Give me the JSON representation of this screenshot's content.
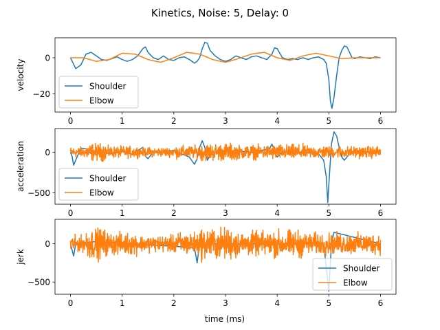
{
  "figure_title": "Kinetics, Noise: 5, Delay: 0",
  "x_label": "time (ms)",
  "chart_data": [
    {
      "type": "line",
      "ylabel": "velocity",
      "xlim": [
        -0.3,
        6.3
      ],
      "ylim": [
        -30,
        11
      ],
      "xticks": [
        0,
        1,
        2,
        3,
        4,
        5,
        6
      ],
      "yticks": [
        0,
        -20
      ],
      "legend": "lower-left",
      "series": [
        {
          "name": "Shoulder",
          "color": "#1f77b4",
          "x": [
            0,
            0.05,
            0.1,
            0.2,
            0.3,
            0.4,
            0.5,
            0.6,
            0.7,
            0.8,
            0.9,
            1.0,
            1.1,
            1.2,
            1.3,
            1.4,
            1.45,
            1.5,
            1.6,
            1.7,
            1.8,
            1.9,
            2.0,
            2.1,
            2.2,
            2.3,
            2.4,
            2.45,
            2.5,
            2.55,
            2.6,
            2.65,
            2.7,
            2.8,
            2.9,
            3.0,
            3.1,
            3.2,
            3.3,
            3.4,
            3.5,
            3.6,
            3.7,
            3.8,
            3.9,
            3.95,
            4.0,
            4.1,
            4.2,
            4.3,
            4.4,
            4.5,
            4.6,
            4.7,
            4.8,
            4.9,
            4.95,
            5.0,
            5.03,
            5.06,
            5.1,
            5.15,
            5.2,
            5.25,
            5.3,
            5.35,
            5.4,
            5.45,
            5.5,
            5.6,
            5.7,
            5.8,
            5.9,
            6.0
          ],
          "y": [
            0,
            -3,
            -6,
            -4,
            2,
            3,
            1,
            -1,
            -1.5,
            -0.5,
            0.5,
            -1,
            -2,
            -1,
            1,
            5,
            6,
            3,
            0,
            -1,
            1,
            -1,
            -1.5,
            0,
            0.5,
            -1,
            -3,
            -2,
            0,
            5,
            8.5,
            8,
            4,
            1,
            -1,
            -2,
            -1,
            1,
            0,
            -1,
            0.5,
            1,
            0,
            -1,
            2,
            5.5,
            5,
            0,
            -1,
            -0.5,
            -1,
            0,
            -1,
            0,
            0.5,
            -1,
            -3,
            -12,
            -24,
            -28,
            -22,
            -10,
            0,
            4,
            6.5,
            6,
            3,
            0,
            -0.5,
            0.5,
            0,
            -0.5,
            0.5,
            0
          ]
        },
        {
          "name": "Elbow",
          "color": "#ff7f0e",
          "x": [
            0,
            0.25,
            0.5,
            0.75,
            1.0,
            1.25,
            1.5,
            1.75,
            2.0,
            2.25,
            2.5,
            2.75,
            3.0,
            3.25,
            3.5,
            3.75,
            4.0,
            4.25,
            4.5,
            4.75,
            5.0,
            5.25,
            5.5,
            5.75,
            6.0
          ],
          "y": [
            0,
            0,
            -2,
            -1,
            2.5,
            2,
            -1,
            -2.5,
            0,
            3,
            2,
            -1,
            -2.5,
            -0.5,
            2,
            3,
            0,
            -1.5,
            1,
            2.5,
            1,
            -0.5,
            0,
            0,
            0
          ]
        }
      ]
    },
    {
      "type": "line",
      "ylabel": "acceleration",
      "xlim": [
        -0.3,
        6.3
      ],
      "ylim": [
        -640,
        290
      ],
      "xticks": [
        0,
        1,
        2,
        3,
        4,
        5,
        6
      ],
      "yticks": [
        0,
        -500
      ],
      "legend": "lower-left",
      "series": [
        {
          "name": "Shoulder",
          "color": "#1f77b4",
          "x": [
            0,
            0.03,
            0.06,
            0.1,
            0.2,
            0.3,
            0.4,
            0.5,
            0.8,
            1.0,
            1.2,
            1.35,
            1.4,
            1.45,
            1.5,
            1.6,
            2.0,
            2.3,
            2.4,
            2.45,
            2.5,
            2.55,
            2.6,
            2.65,
            2.7,
            2.8,
            3.0,
            3.5,
            3.85,
            3.9,
            3.95,
            4.0,
            4.1,
            4.5,
            4.8,
            4.9,
            4.95,
            4.98,
            5.0,
            5.05,
            5.1,
            5.15,
            5.2,
            5.25,
            5.3,
            5.4,
            5.5,
            5.7,
            6.0
          ],
          "y": [
            0,
            -50,
            -160,
            -100,
            50,
            40,
            -20,
            10,
            -20,
            10,
            -30,
            40,
            60,
            -50,
            -80,
            0,
            20,
            -60,
            -150,
            -80,
            60,
            140,
            60,
            -100,
            -40,
            0,
            20,
            0,
            40,
            100,
            10,
            -60,
            0,
            0,
            -20,
            -100,
            -300,
            -620,
            -400,
            100,
            250,
            200,
            60,
            -60,
            -100,
            -20,
            20,
            0,
            0
          ]
        },
        {
          "name": "Elbow",
          "color": "#ff7f0e",
          "noise": [
            [
              0,
              0.3,
              90
            ],
            [
              0.3,
              0.7,
              150
            ],
            [
              0.7,
              1.3,
              100
            ],
            [
              1.3,
              2.0,
              80
            ],
            [
              2.0,
              2.5,
              110
            ],
            [
              2.5,
              3.2,
              150
            ],
            [
              3.2,
              3.9,
              120
            ],
            [
              3.9,
              4.5,
              130
            ],
            [
              4.5,
              5.0,
              110
            ],
            [
              5.0,
              6.0,
              100
            ]
          ]
        }
      ]
    },
    {
      "type": "line",
      "ylabel": "jerk",
      "xlim": [
        -0.3,
        6.3
      ],
      "ylim": [
        -660,
        320
      ],
      "xticks": [
        0,
        1,
        2,
        3,
        4,
        5,
        6
      ],
      "yticks": [
        0,
        -500
      ],
      "legend": "lower-right",
      "series": [
        {
          "name": "Shoulder",
          "color": "#1f77b4",
          "x": [
            0,
            0.03,
            0.06,
            0.1,
            0.5,
            2.4,
            2.45,
            2.5,
            4.9,
            4.95,
            5.0,
            5.05,
            5.1,
            6.0
          ],
          "y": [
            0,
            -80,
            -160,
            0,
            30,
            -50,
            -250,
            0,
            0,
            -300,
            -620,
            0,
            150,
            0
          ]
        },
        {
          "name": "Elbow",
          "color": "#ff7f0e",
          "noise": [
            [
              0,
              0.3,
              150
            ],
            [
              0.3,
              0.7,
              280
            ],
            [
              0.7,
              1.3,
              200
            ],
            [
              1.3,
              2.0,
              150
            ],
            [
              2.0,
              2.5,
              210
            ],
            [
              2.5,
              3.2,
              290
            ],
            [
              3.2,
              3.9,
              220
            ],
            [
              3.9,
              4.5,
              250
            ],
            [
              4.5,
              5.0,
              200
            ],
            [
              5.0,
              6.0,
              190
            ]
          ]
        }
      ]
    }
  ]
}
